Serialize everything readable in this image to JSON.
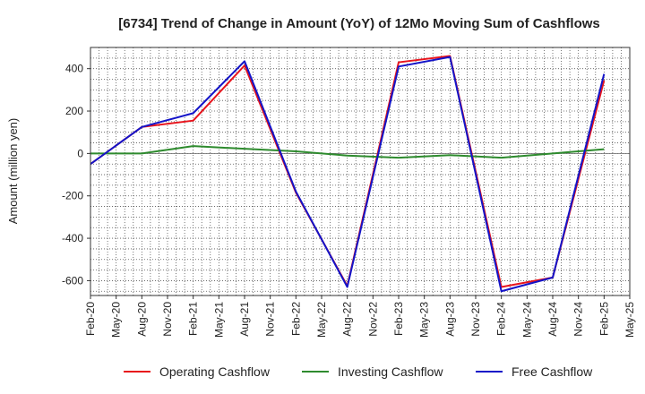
{
  "chart_data": {
    "type": "line",
    "title": "[6734]  Trend of Change in Amount (YoY) of 12Mo Moving Sum of Cashflows",
    "xlabel": "",
    "ylabel": "Amount (million yen)",
    "ylim": [
      -670,
      500
    ],
    "yticks": [
      -600,
      -400,
      -200,
      0,
      200,
      400
    ],
    "x_labels": [
      "Feb-20",
      "May-20",
      "Aug-20",
      "Nov-20",
      "Feb-21",
      "May-21",
      "Aug-21",
      "Nov-21",
      "Feb-22",
      "May-22",
      "Aug-22",
      "Nov-22",
      "Feb-23",
      "May-23",
      "Aug-23",
      "Nov-23",
      "Feb-24",
      "May-24",
      "Aug-24",
      "Nov-24",
      "Feb-25",
      "May-25"
    ],
    "x_label_index": [
      0,
      1,
      2,
      3,
      4,
      5,
      6,
      7,
      8,
      9,
      10,
      11,
      12,
      13,
      14,
      15,
      16,
      17,
      18,
      19,
      20,
      21
    ],
    "grid": true,
    "legend_position": "bottom",
    "series": [
      {
        "name": "Operating Cashflow",
        "color": "#e8141c",
        "points": [
          [
            0,
            -50
          ],
          [
            2,
            125
          ],
          [
            4,
            155
          ],
          [
            6,
            415
          ],
          [
            8,
            -185
          ],
          [
            10,
            -625
          ],
          [
            12,
            430
          ],
          [
            14,
            460
          ],
          [
            16,
            -630
          ],
          [
            18,
            -585
          ],
          [
            20,
            345
          ]
        ]
      },
      {
        "name": "Investing Cashflow",
        "color": "#2e8b2e",
        "points": [
          [
            0,
            0
          ],
          [
            2,
            0
          ],
          [
            4,
            35
          ],
          [
            6,
            22
          ],
          [
            8,
            10
          ],
          [
            10,
            -10
          ],
          [
            12,
            -20
          ],
          [
            14,
            -8
          ],
          [
            16,
            -20
          ],
          [
            18,
            0
          ],
          [
            20,
            20
          ]
        ]
      },
      {
        "name": "Free Cashflow",
        "color": "#1414c8",
        "points": [
          [
            0,
            -50
          ],
          [
            2,
            125
          ],
          [
            4,
            190
          ],
          [
            6,
            435
          ],
          [
            8,
            -180
          ],
          [
            10,
            -630
          ],
          [
            12,
            410
          ],
          [
            14,
            455
          ],
          [
            16,
            -650
          ],
          [
            18,
            -585
          ],
          [
            20,
            375
          ]
        ]
      }
    ]
  }
}
